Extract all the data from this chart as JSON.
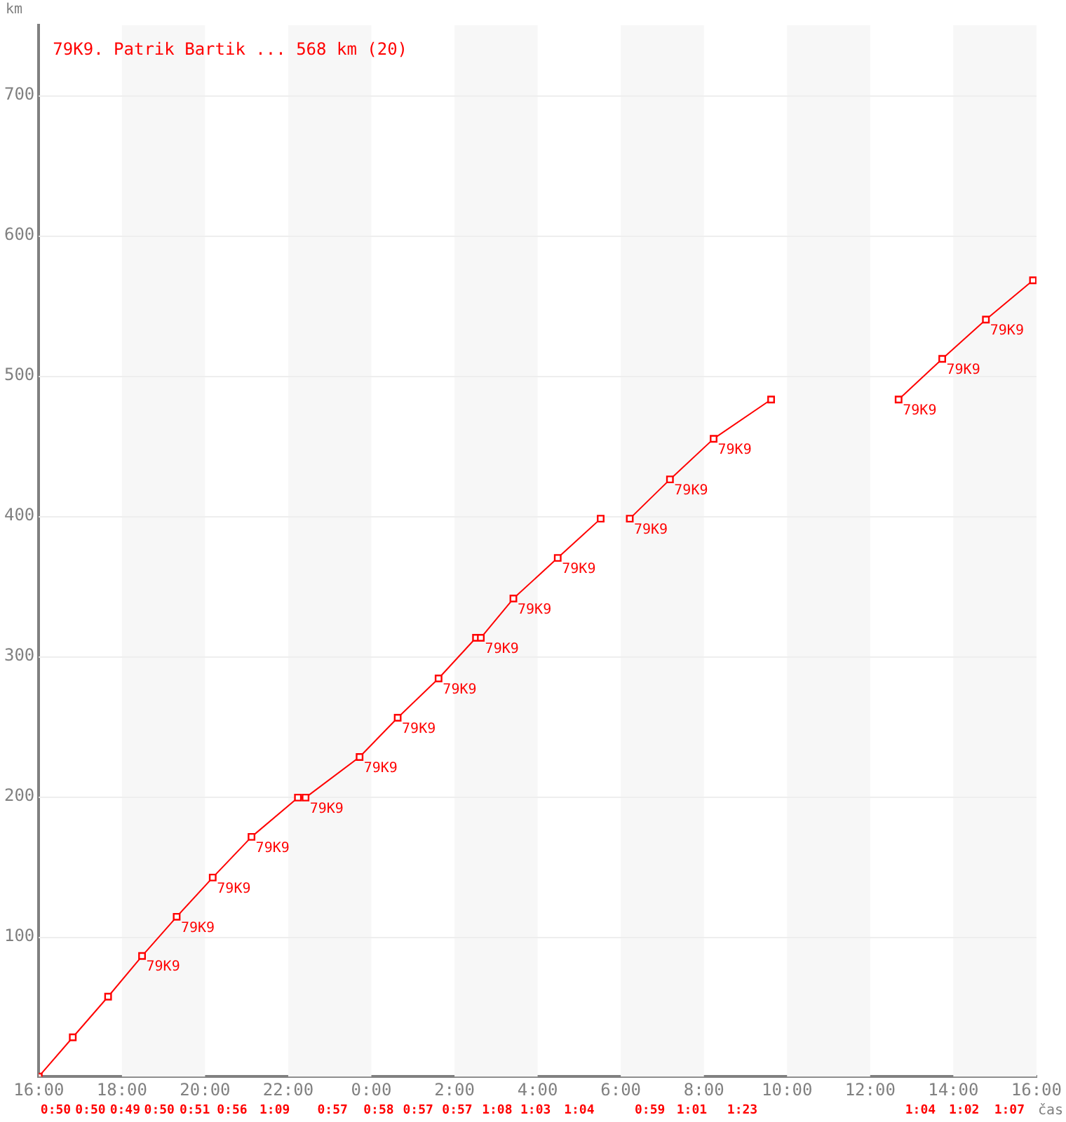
{
  "chart_data": {
    "type": "line",
    "title": "79K9. Patrik Bartik ... 568 km (20)",
    "xlabel": "čas",
    "ylabel": "km",
    "xlim": [
      "--01-01T16:00",
      "--01-02T16:00"
    ],
    "ylim": [
      0,
      750
    ],
    "xticks": [
      {
        "value": "--01-01T16:00",
        "label": "16:00"
      },
      {
        "value": "--01-01T18:00",
        "label": "18:00"
      },
      {
        "value": "--01-01T20:00",
        "label": "20:00"
      },
      {
        "value": "--01-01T22:00",
        "label": "22:00"
      },
      {
        "value": "--01-02T00:00",
        "label": "0:00"
      },
      {
        "value": "--01-02T02:00",
        "label": "2:00"
      },
      {
        "value": "--01-02T04:00",
        "label": "4:00"
      },
      {
        "value": "--01-02T06:00",
        "label": "6:00"
      },
      {
        "value": "--01-02T08:00",
        "label": "8:00"
      },
      {
        "value": "--01-02T10:00",
        "label": "10:00"
      },
      {
        "value": "--01-02T12:00",
        "label": "12:00"
      },
      {
        "value": "--01-02T14:00",
        "label": "14:00"
      },
      {
        "value": "--01-02T16:00",
        "label": "16:00"
      }
    ],
    "yticks": [
      100,
      200,
      300,
      400,
      500,
      600,
      700
    ],
    "grid": "y",
    "marker": "square",
    "line_style": "solid",
    "legend": false,
    "bands": [
      {
        "axis": "x",
        "from": "--01-01T18:00",
        "to": "--01-01T20:00",
        "color": "#f7f7f7"
      },
      {
        "axis": "x",
        "from": "--01-01T22:00",
        "to": "--01-02T00:00",
        "color": "#f7f7f7"
      },
      {
        "axis": "x",
        "from": "--01-02T02:00",
        "to": "--01-02T04:00",
        "color": "#f7f7f7"
      },
      {
        "axis": "x",
        "from": "--01-02T06:00",
        "to": "--01-02T08:00",
        "color": "#f7f7f7"
      },
      {
        "axis": "x",
        "from": "--01-02T10:00",
        "to": "--01-02T12:00",
        "color": "#f7f7f7"
      },
      {
        "axis": "x",
        "from": "--01-02T14:00",
        "to": "--01-02T16:00",
        "color": "#f7f7f7"
      }
    ],
    "series": [
      {
        "color": "#ff0000",
        "x": [
          "--01-01T16:00",
          "--01-01T16:49",
          "--01-01T17:40",
          "--01-01T18:29",
          "--01-01T19:19",
          "--01-01T20:11",
          "--01-01T21:07",
          "--01-01T22:14",
          "--01-01T22:25",
          "--01-01T23:43",
          "--01-02T00:38",
          "--01-02T01:37",
          "--01-02T02:31",
          "--01-02T02:38",
          "--01-02T03:25",
          "--01-02T04:29",
          "--01-02T05:31"
        ],
        "values": [
          0,
          28,
          57,
          86,
          114,
          142,
          171,
          199,
          199,
          228,
          256,
          284,
          313,
          313,
          341,
          370,
          398
        ]
      },
      {
        "color": "#ff0000",
        "x": [
          "--01-02T06:13",
          "--01-02T07:11",
          "--01-02T08:14",
          "--01-02T09:37"
        ],
        "values": [
          398,
          426,
          455,
          483
        ]
      },
      {
        "color": "#ff0000",
        "x": [
          "--01-02T12:41",
          "--01-02T13:44",
          "--01-02T14:47",
          "--01-02T15:55"
        ],
        "values": [
          483,
          512,
          540,
          568
        ]
      }
    ],
    "annotations": [
      {
        "text": "79K9",
        "x": "--01-01T18:29",
        "y": 86
      },
      {
        "text": "79K9",
        "x": "--01-01T19:19",
        "y": 114
      },
      {
        "text": "79K9",
        "x": "--01-01T20:11",
        "y": 142
      },
      {
        "text": "79K9",
        "x": "--01-01T21:07",
        "y": 171
      },
      {
        "text": "79K9",
        "x": "--01-01T22:25",
        "y": 199
      },
      {
        "text": "79K9",
        "x": "--01-01T23:43",
        "y": 228
      },
      {
        "text": "79K9",
        "x": "--01-02T00:38",
        "y": 256
      },
      {
        "text": "79K9",
        "x": "--01-02T01:37",
        "y": 284
      },
      {
        "text": "79K9",
        "x": "--01-02T02:38",
        "y": 313
      },
      {
        "text": "79K9",
        "x": "--01-02T03:25",
        "y": 341
      },
      {
        "text": "79K9",
        "x": "--01-02T04:29",
        "y": 370
      },
      {
        "text": "79K9",
        "x": "--01-02T06:13",
        "y": 398
      },
      {
        "text": "79K9",
        "x": "--01-02T07:11",
        "y": 426
      },
      {
        "text": "79K9",
        "x": "--01-02T08:14",
        "y": 455
      },
      {
        "text": "79K9",
        "x": "--01-02T12:41",
        "y": 483
      },
      {
        "text": "79K9",
        "x": "--01-02T13:44",
        "y": 512
      },
      {
        "text": "79K9",
        "x": "--01-02T14:47",
        "y": 540
      },
      "0:50",
      "0:50",
      "0:49",
      "0:50",
      "0:51",
      "0:56",
      "1:09",
      "0:57",
      "0:58",
      "0:57",
      "0:57",
      "1:08",
      "1:03",
      "1:04",
      "0:59",
      "1:01",
      "1:23",
      "1:04",
      "1:02",
      "1:07"
    ]
  }
}
